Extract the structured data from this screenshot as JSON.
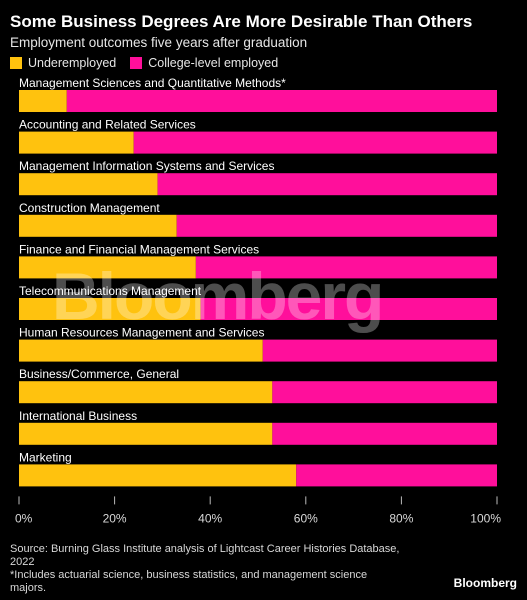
{
  "title": "Some Business Degrees Are More Desirable Than Others",
  "subtitle": "Employment outcomes five years after graduation",
  "legend": [
    {
      "name": "Underemployed",
      "color": "#ffc20e"
    },
    {
      "name": "College-level employed",
      "color": "#ff0f9b"
    }
  ],
  "watermark": "Bloomberg",
  "source_lines": [
    "Source: Burning Glass Institute analysis of Lightcast Career Histories Database,",
    "2022",
    "*Includes actuarial science, business statistics, and management science",
    "majors."
  ],
  "brand": "Bloomberg",
  "chart_data": {
    "type": "bar",
    "orientation": "horizontal",
    "stacked": true,
    "categories": [
      "Management Sciences and Quantitative Methods*",
      "Accounting and Related Services",
      "Management Information Systems and Services",
      "Construction Management",
      "Finance and Financial Management Services",
      "Telecommunications Management",
      "Human Resources Management and Services",
      "Business/Commerce, General",
      "International Business",
      "Marketing"
    ],
    "series": [
      {
        "name": "Underemployed",
        "color": "#ffc20e",
        "values": [
          10,
          24,
          29,
          33,
          37,
          38,
          51,
          53,
          53,
          58
        ]
      },
      {
        "name": "College-level employed",
        "color": "#ff0f9b",
        "values": [
          90,
          76,
          71,
          67,
          63,
          62,
          49,
          47,
          47,
          42
        ]
      }
    ],
    "xlim": [
      0,
      100
    ],
    "xticks": [
      0,
      20,
      40,
      60,
      80,
      100
    ],
    "xtick_labels": [
      "0%",
      "20%",
      "40%",
      "60%",
      "80%",
      "100%"
    ]
  }
}
